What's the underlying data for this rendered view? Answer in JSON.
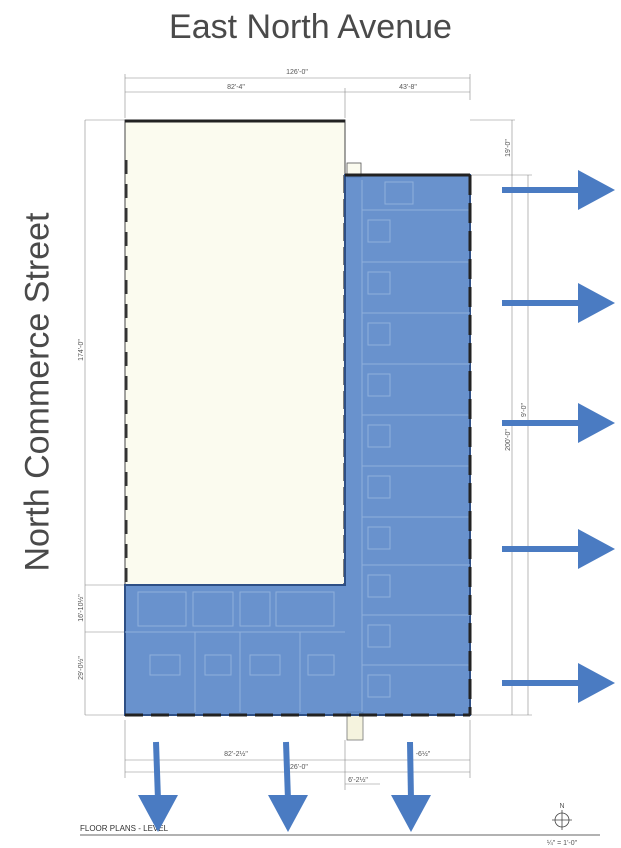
{
  "labels": {
    "top_street": "East North Avenue",
    "left_street": "North Commerce Street",
    "caption": "FLOOR PLANS - LEVEL",
    "north": "N",
    "scale": "¼\" = 1'-0\""
  },
  "dimensions": {
    "overall_width": "126'-0\"",
    "left_bay": "82'-4\"",
    "right_bay": "43'-8\"",
    "top_offset": "19'-0\"",
    "left_height": "174'-0\"",
    "right_height": "200'-0\"",
    "right_inner_height": "9'-0\"",
    "lower_section_upper": "16'-10½\"",
    "lower_section_lower": "29'-0½\"",
    "bottom_left": "82'-2½\"",
    "bottom_right": "-6½\"",
    "bottom_overall": "126'-0\"",
    "bottom_small": "6'-2½\""
  },
  "colors": {
    "highlight": "#4f7fc4",
    "arrow": "#4a7bc2",
    "open_space": "#fbfbef",
    "wall": "#333333"
  }
}
